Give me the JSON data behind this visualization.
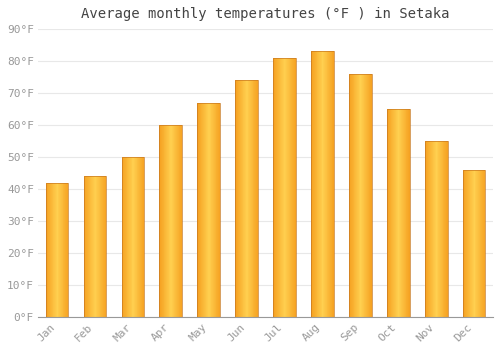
{
  "title": "Average monthly temperatures (°F ) in Setaka",
  "months": [
    "Jan",
    "Feb",
    "Mar",
    "Apr",
    "May",
    "Jun",
    "Jul",
    "Aug",
    "Sep",
    "Oct",
    "Nov",
    "Dec"
  ],
  "values": [
    42,
    44,
    50,
    60,
    67,
    74,
    81,
    83,
    76,
    65,
    55,
    46
  ],
  "bar_color_center": "#FFD050",
  "bar_color_edge": "#F5A020",
  "bar_border_color": "#C87820",
  "ylim": [
    0,
    90
  ],
  "yticks": [
    0,
    10,
    20,
    30,
    40,
    50,
    60,
    70,
    80,
    90
  ],
  "ytick_labels": [
    "0°F",
    "10°F",
    "20°F",
    "30°F",
    "40°F",
    "50°F",
    "60°F",
    "70°F",
    "80°F",
    "90°F"
  ],
  "plot_bg_color": "#ffffff",
  "fig_bg_color": "#ffffff",
  "grid_color": "#e8e8e8",
  "tick_color": "#999999",
  "title_color": "#444444",
  "title_fontsize": 10,
  "tick_fontsize": 8,
  "bar_width": 0.6
}
